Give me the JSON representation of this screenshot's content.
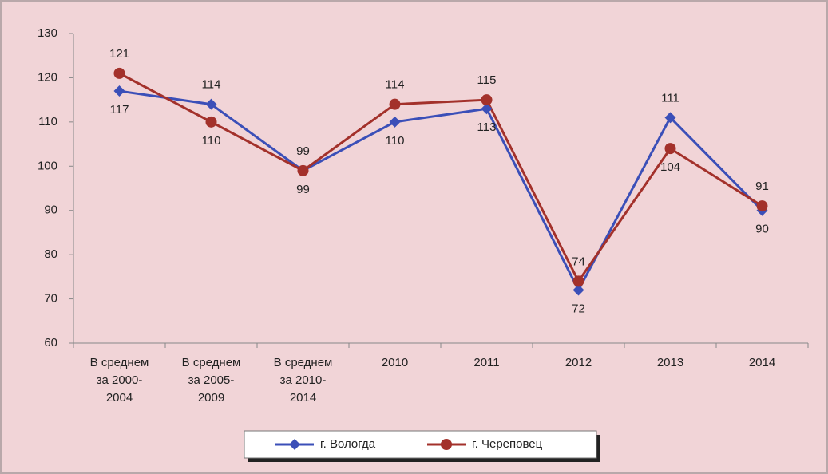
{
  "chart_data": {
    "type": "line",
    "categories": [
      "В среднем за 2000-2004",
      "В среднем за 2005-2009",
      "В среднем за 2010-2014",
      "2010",
      "2011",
      "2012",
      "2013",
      "2014"
    ],
    "series": [
      {
        "name": "г. Вологда",
        "color": "#3b4fb8",
        "marker": "diamond",
        "values": [
          117,
          114,
          99,
          110,
          113,
          72,
          111,
          90
        ]
      },
      {
        "name": "г. Череповец",
        "color": "#a3312b",
        "marker": "circle",
        "values": [
          121,
          110,
          99,
          114,
          115,
          74,
          104,
          91
        ]
      }
    ],
    "ylim": [
      60,
      130
    ],
    "yticks": [
      60,
      70,
      80,
      90,
      100,
      110,
      120,
      130
    ],
    "grid": false,
    "legend": "bottom"
  }
}
